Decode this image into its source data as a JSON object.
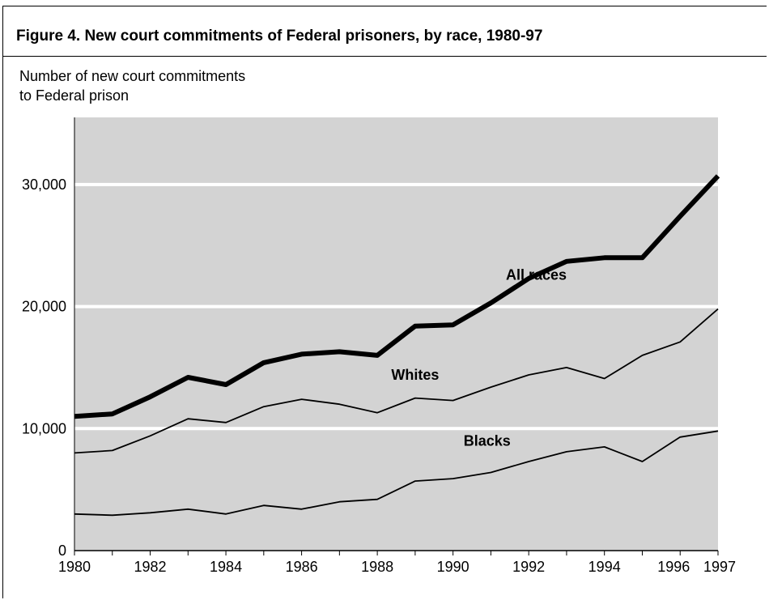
{
  "chart_data": {
    "type": "line",
    "title": "Figure 4.  New court commitments of Federal prisoners, by race, 1980-97",
    "ylabel_lines": [
      "Number of new court commitments",
      "to Federal prison"
    ],
    "xlabel": "",
    "x": [
      1980,
      1981,
      1982,
      1983,
      1984,
      1985,
      1986,
      1987,
      1988,
      1989,
      1990,
      1991,
      1992,
      1993,
      1994,
      1995,
      1996,
      1997
    ],
    "xtick_labels": [
      "1980",
      "1982",
      "1984",
      "1986",
      "1988",
      "1990",
      "1992",
      "1994",
      "1996",
      "1997"
    ],
    "ytick_labels": [
      "0",
      "10,000",
      "20,000",
      "30,000"
    ],
    "yticks": [
      0,
      10000,
      20000,
      30000
    ],
    "ylim": [
      0,
      35500
    ],
    "xlim": [
      1980,
      1997
    ],
    "grid": "horizontal",
    "background": "#d3d3d3",
    "gridline_color": "#ffffff",
    "series": [
      {
        "name": "All races",
        "label_x": 1992.2,
        "label_y": 22200,
        "values": [
          11000,
          11200,
          12600,
          14200,
          13600,
          15400,
          16100,
          16300,
          16000,
          18400,
          18500,
          20300,
          22300,
          23700,
          24000,
          24000,
          27400,
          30700
        ]
      },
      {
        "name": "Whites",
        "label_x": 1989.0,
        "label_y": 14000,
        "values": [
          8000,
          8200,
          9400,
          10800,
          10500,
          11800,
          12400,
          12000,
          11300,
          12500,
          12300,
          13400,
          14400,
          15000,
          14100,
          16000,
          17100,
          19800
        ]
      },
      {
        "name": "Blacks",
        "label_x": 1990.9,
        "label_y": 8600,
        "values": [
          3000,
          2900,
          3100,
          3400,
          3000,
          3700,
          3400,
          4000,
          4200,
          5700,
          5900,
          6400,
          7300,
          8100,
          8500,
          7300,
          9300,
          9800
        ]
      }
    ]
  }
}
